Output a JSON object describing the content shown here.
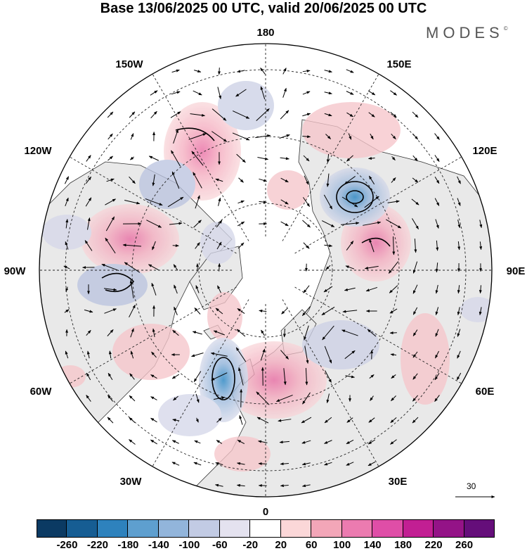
{
  "title": "Base 13/06/2025 00 UTC, valid 20/06/2025 00 UTC",
  "brand": "MODES",
  "brand_mark": "©",
  "map": {
    "projection": "north-polar-stereographic",
    "longitude_labels": {
      "top": "180",
      "bottom": "0",
      "left": "90W",
      "right": "90E",
      "upper_left_1": "150W",
      "upper_left_2": "120W",
      "upper_right_1": "150E",
      "upper_right_2": "120E",
      "lower_left_1": "60W",
      "lower_left_2": "30W",
      "lower_right_1": "60E",
      "lower_right_2": "30E"
    },
    "colors": {
      "land": "#e9e9e9",
      "coast": "#333333",
      "grid": "#222222",
      "positive": "#f2c0c4",
      "positive_strong": "#e96aa2",
      "negative": "#c5cbe3",
      "negative_strong": "#2e8ac4"
    }
  },
  "reference_vector": {
    "label": "30"
  },
  "colorbar": {
    "ticks": [
      "-260",
      "-220",
      "-180",
      "-140",
      "-100",
      "-60",
      "-20",
      "20",
      "60",
      "100",
      "140",
      "180",
      "220",
      "260"
    ],
    "colors": [
      "#0b3a63",
      "#165d93",
      "#2e82bd",
      "#5e9fcf",
      "#92b5db",
      "#c2cbe4",
      "#e4e2ef",
      "#ffffff",
      "#fbd7d8",
      "#f3a6b8",
      "#ec7bb0",
      "#df4ea7",
      "#c21f93",
      "#941387",
      "#650e7a"
    ]
  }
}
